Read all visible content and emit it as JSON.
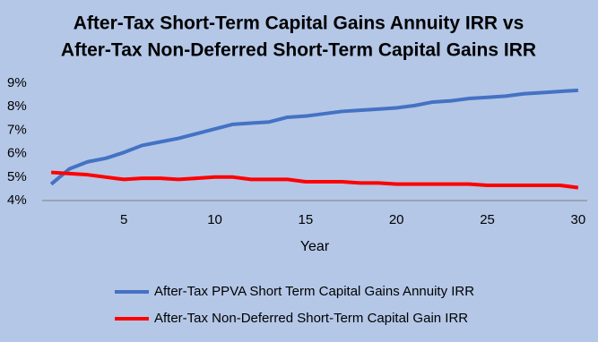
{
  "chart_data": {
    "type": "line",
    "title": [
      "After-Tax Short-Term Capital Gains Annuity IRR vs",
      "After-Tax Non-Deferred Short-Term Capital Gains IRR"
    ],
    "x_label": "Year",
    "x": [
      1,
      2,
      3,
      4,
      5,
      6,
      7,
      8,
      9,
      10,
      11,
      12,
      13,
      14,
      15,
      16,
      17,
      18,
      19,
      20,
      21,
      22,
      23,
      24,
      25,
      26,
      27,
      28,
      29,
      30
    ],
    "series": [
      {
        "name": "After-Tax PPVA Short Term Capital Gains Annuity IRR",
        "color": "#4472c4",
        "values": [
          4.7,
          5.35,
          5.65,
          5.8,
          6.05,
          6.35,
          6.5,
          6.65,
          6.85,
          7.05,
          7.25,
          7.3,
          7.35,
          7.55,
          7.6,
          7.7,
          7.8,
          7.85,
          7.9,
          7.95,
          8.05,
          8.2,
          8.25,
          8.35,
          8.4,
          8.45,
          8.55,
          8.6,
          8.65,
          8.7
        ]
      },
      {
        "name": "After-Tax Non-Deferred Short-Term Capital Gain IRR",
        "color": "#ff0000",
        "values": [
          5.2,
          5.15,
          5.1,
          5.0,
          4.9,
          4.95,
          4.95,
          4.9,
          4.95,
          5.0,
          5.0,
          4.9,
          4.9,
          4.9,
          4.8,
          4.8,
          4.8,
          4.75,
          4.75,
          4.7,
          4.7,
          4.7,
          4.7,
          4.7,
          4.65,
          4.65,
          4.65,
          4.65,
          4.65,
          4.55
        ]
      }
    ],
    "xlim": [
      0.5,
      30.5
    ],
    "xticks": [
      5,
      10,
      15,
      20,
      25,
      30
    ],
    "ylim": [
      4,
      9
    ],
    "yticks": [
      {
        "value": 4,
        "label": "4%"
      },
      {
        "value": 5,
        "label": "5%"
      },
      {
        "value": 6,
        "label": "6%"
      },
      {
        "value": 7,
        "label": "7%"
      },
      {
        "value": 8,
        "label": "8%"
      },
      {
        "value": 9,
        "label": "9%"
      }
    ],
    "grid": false,
    "legend": "bottom",
    "background": "#b4c7e7"
  }
}
